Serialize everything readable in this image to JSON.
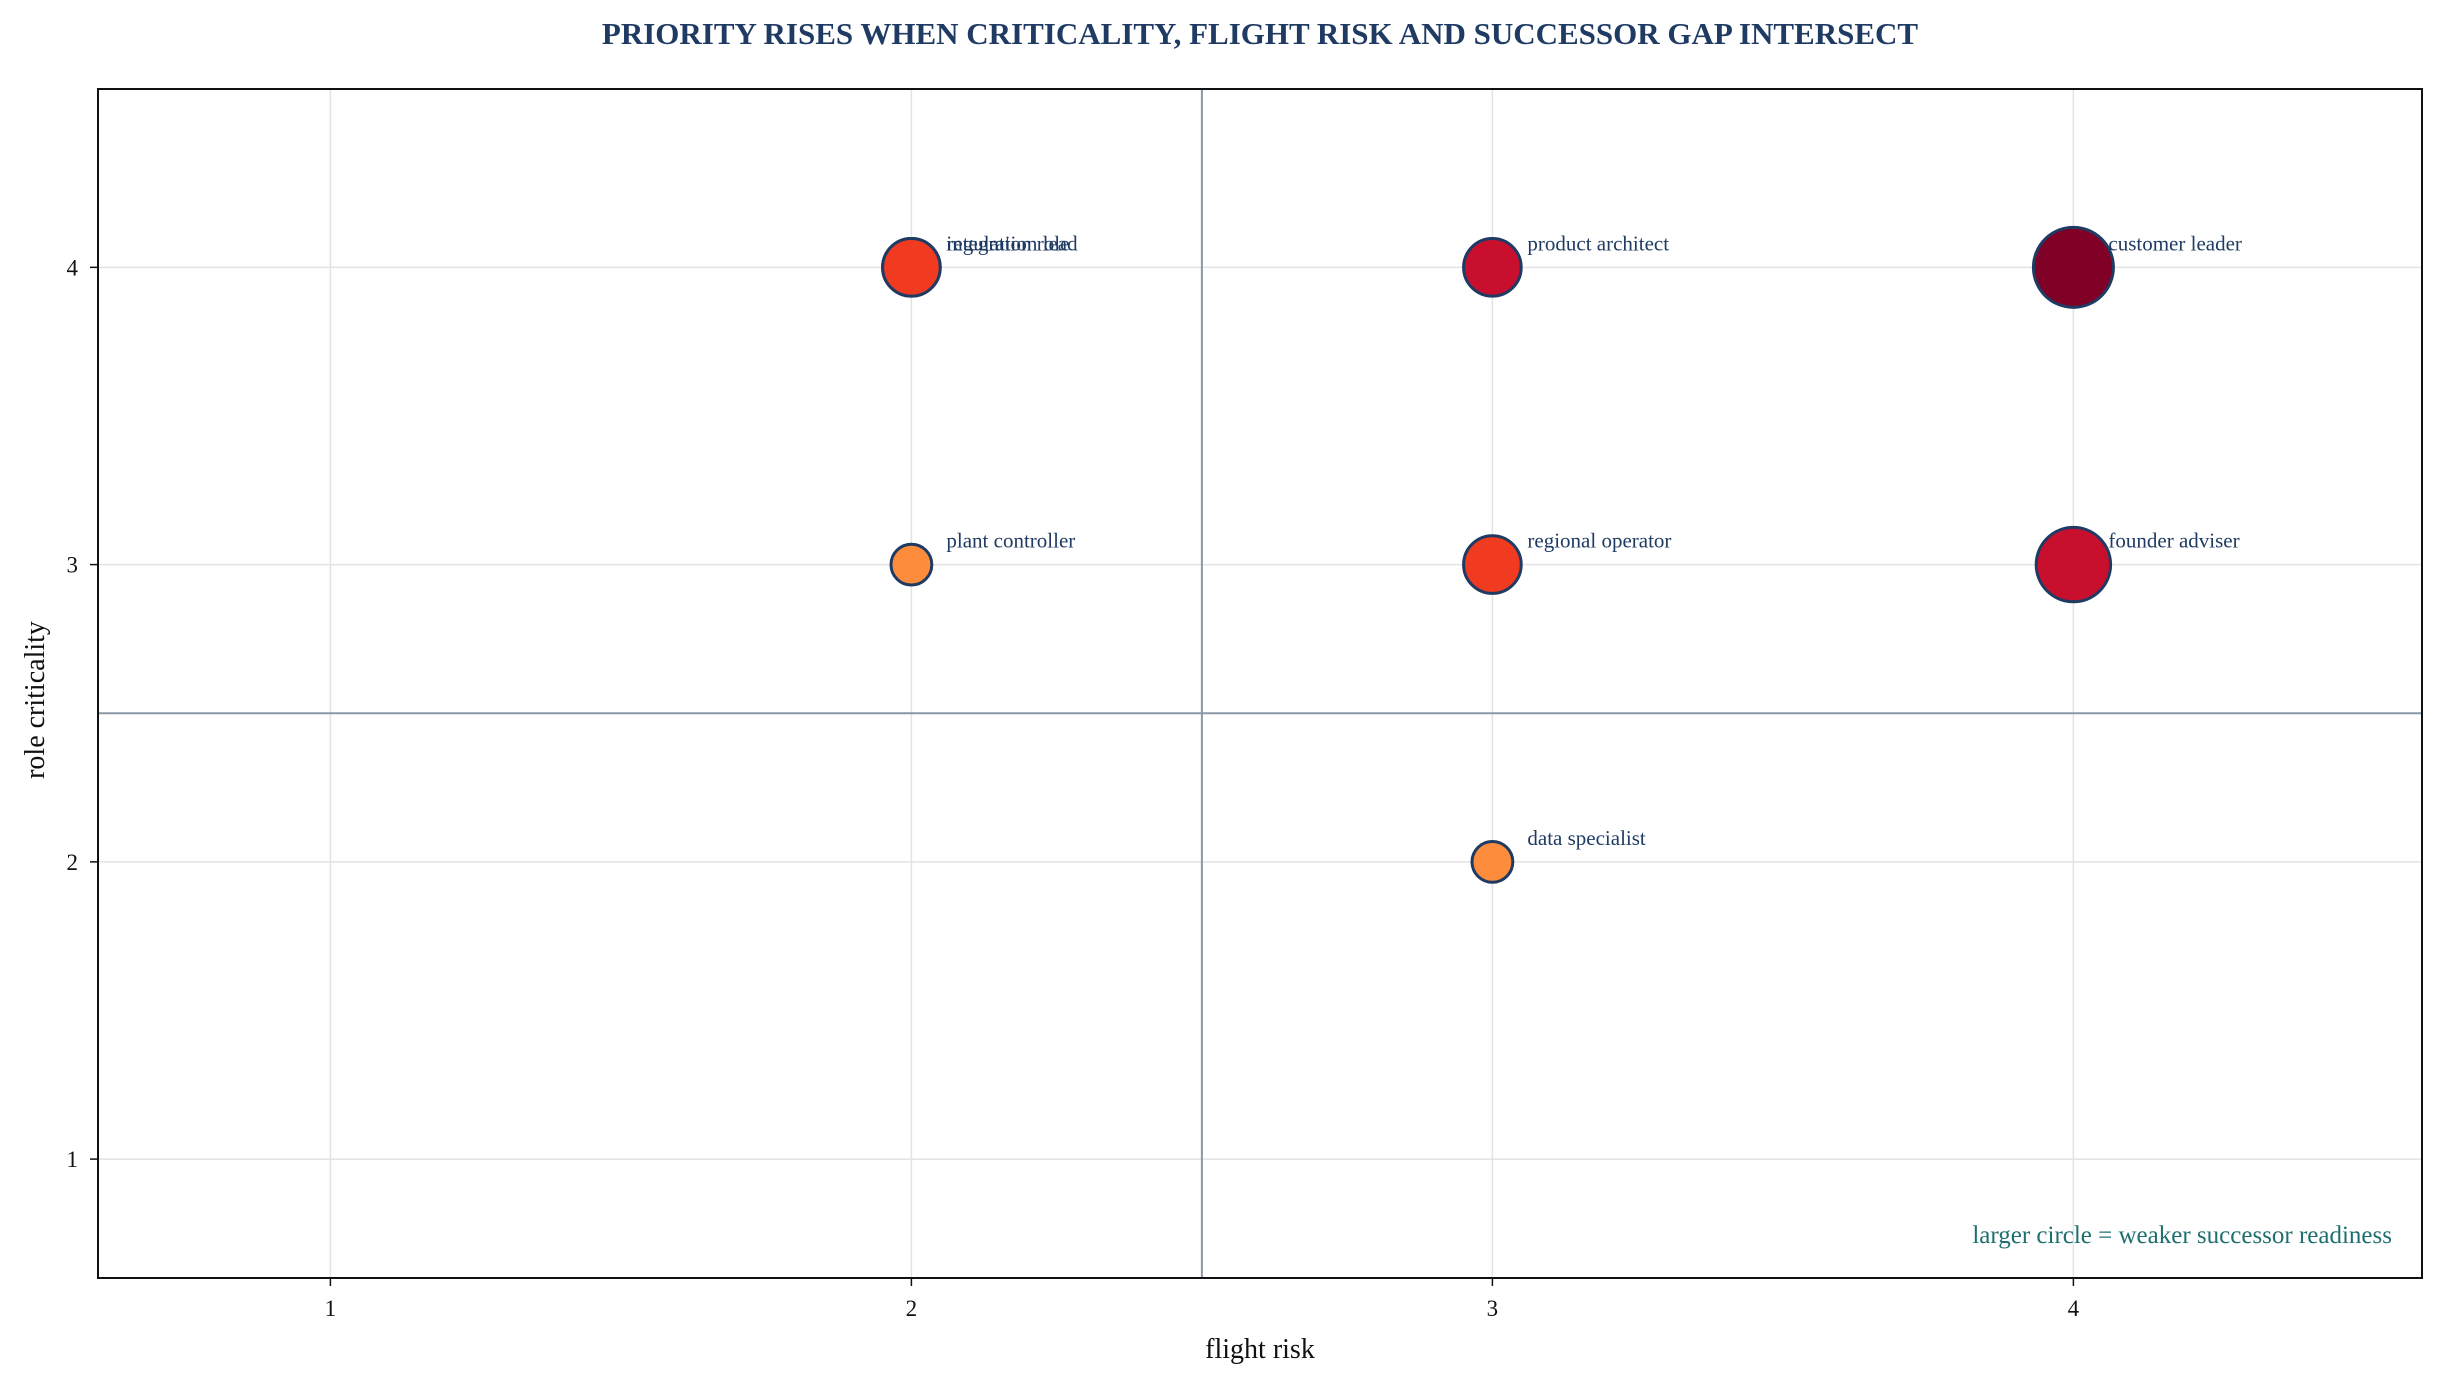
{
  "chart_data": {
    "type": "scatter",
    "title": "PRIORITY RISES WHEN CRITICALITY, FLIGHT RISK AND SUCCESSOR GAP INTERSECT",
    "xlabel": "flight risk",
    "ylabel": "role criticality",
    "xlim": [
      0.6,
      4.6
    ],
    "ylim": [
      0.6,
      4.6
    ],
    "x_ticks": [
      "1",
      "2",
      "3",
      "4"
    ],
    "y_ticks": [
      "1",
      "2",
      "3",
      "4"
    ],
    "grid": true,
    "reference_lines": {
      "x": 2.5,
      "y": 2.5
    },
    "note": "larger circle = weaker successor readiness",
    "points": [
      {
        "label": "integration lead",
        "x": 2,
        "y": 4,
        "readiness_gap": 3,
        "color": "#f03b20"
      },
      {
        "label": "regulation role",
        "x": 2,
        "y": 4,
        "readiness_gap": 3,
        "color": "#f03b20"
      },
      {
        "label": "product architect",
        "x": 3,
        "y": 4,
        "readiness_gap": 3,
        "color": "#c8102e"
      },
      {
        "label": "customer leader",
        "x": 4,
        "y": 4,
        "readiness_gap": 5,
        "color": "#800026"
      },
      {
        "label": "plant controller",
        "x": 2,
        "y": 3,
        "readiness_gap": 1.5,
        "color": "#fd8d3c"
      },
      {
        "label": "regional operator",
        "x": 3,
        "y": 3,
        "readiness_gap": 3,
        "color": "#f03b20"
      },
      {
        "label": "founder adviser",
        "x": 4,
        "y": 3,
        "readiness_gap": 4.5,
        "color": "#c8102e"
      },
      {
        "label": "data specialist",
        "x": 3,
        "y": 2,
        "readiness_gap": 1.5,
        "color": "#fd8d3c"
      }
    ]
  },
  "colors": {
    "title": "#1f3b63",
    "point_label": "#1f3b63",
    "marker_edge": "#1f3b63",
    "note": "#1f6f6f",
    "grid": "#e3e3e3",
    "reference_line": "#8a98a6",
    "axes_frame": "#111111"
  }
}
